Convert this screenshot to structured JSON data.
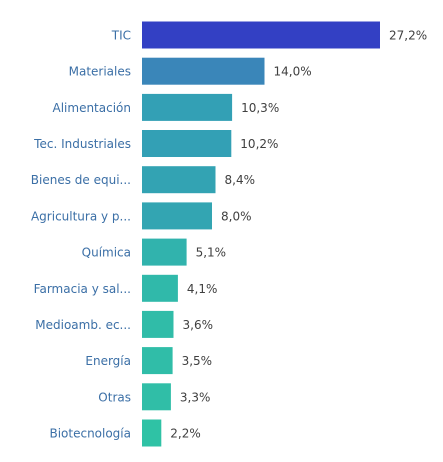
{
  "chart_data": {
    "type": "bar",
    "orientation": "horizontal",
    "title": "",
    "xlabel": "",
    "ylabel": "",
    "categories": [
      "TIC",
      "Materiales",
      "Alimentación",
      "Tec. Industriales",
      "Bienes de equi...",
      "Agricultura y p...",
      "Química",
      "Farmacia y sal...",
      "Medioamb. ec...",
      "Energía",
      "Otras",
      "Biotecnología"
    ],
    "values": [
      27.2,
      14.0,
      10.3,
      10.2,
      8.4,
      8.0,
      5.1,
      4.1,
      3.6,
      3.5,
      3.3,
      2.2
    ],
    "value_labels": [
      "27,2%",
      "14,0%",
      "10,3%",
      "10,2%",
      "8,4%",
      "8,0%",
      "5,1%",
      "4,1%",
      "3,6%",
      "3,5%",
      "3,3%",
      "2,2%"
    ],
    "colors": [
      "#3340c4",
      "#3a86b9",
      "#33a0b5",
      "#33a0b5",
      "#33a3b3",
      "#33a5b2",
      "#31b3ad",
      "#30b9aa",
      "#30bca8",
      "#30bda8",
      "#30bea7",
      "#2fc2a5"
    ],
    "grid": false,
    "legend": "none"
  }
}
